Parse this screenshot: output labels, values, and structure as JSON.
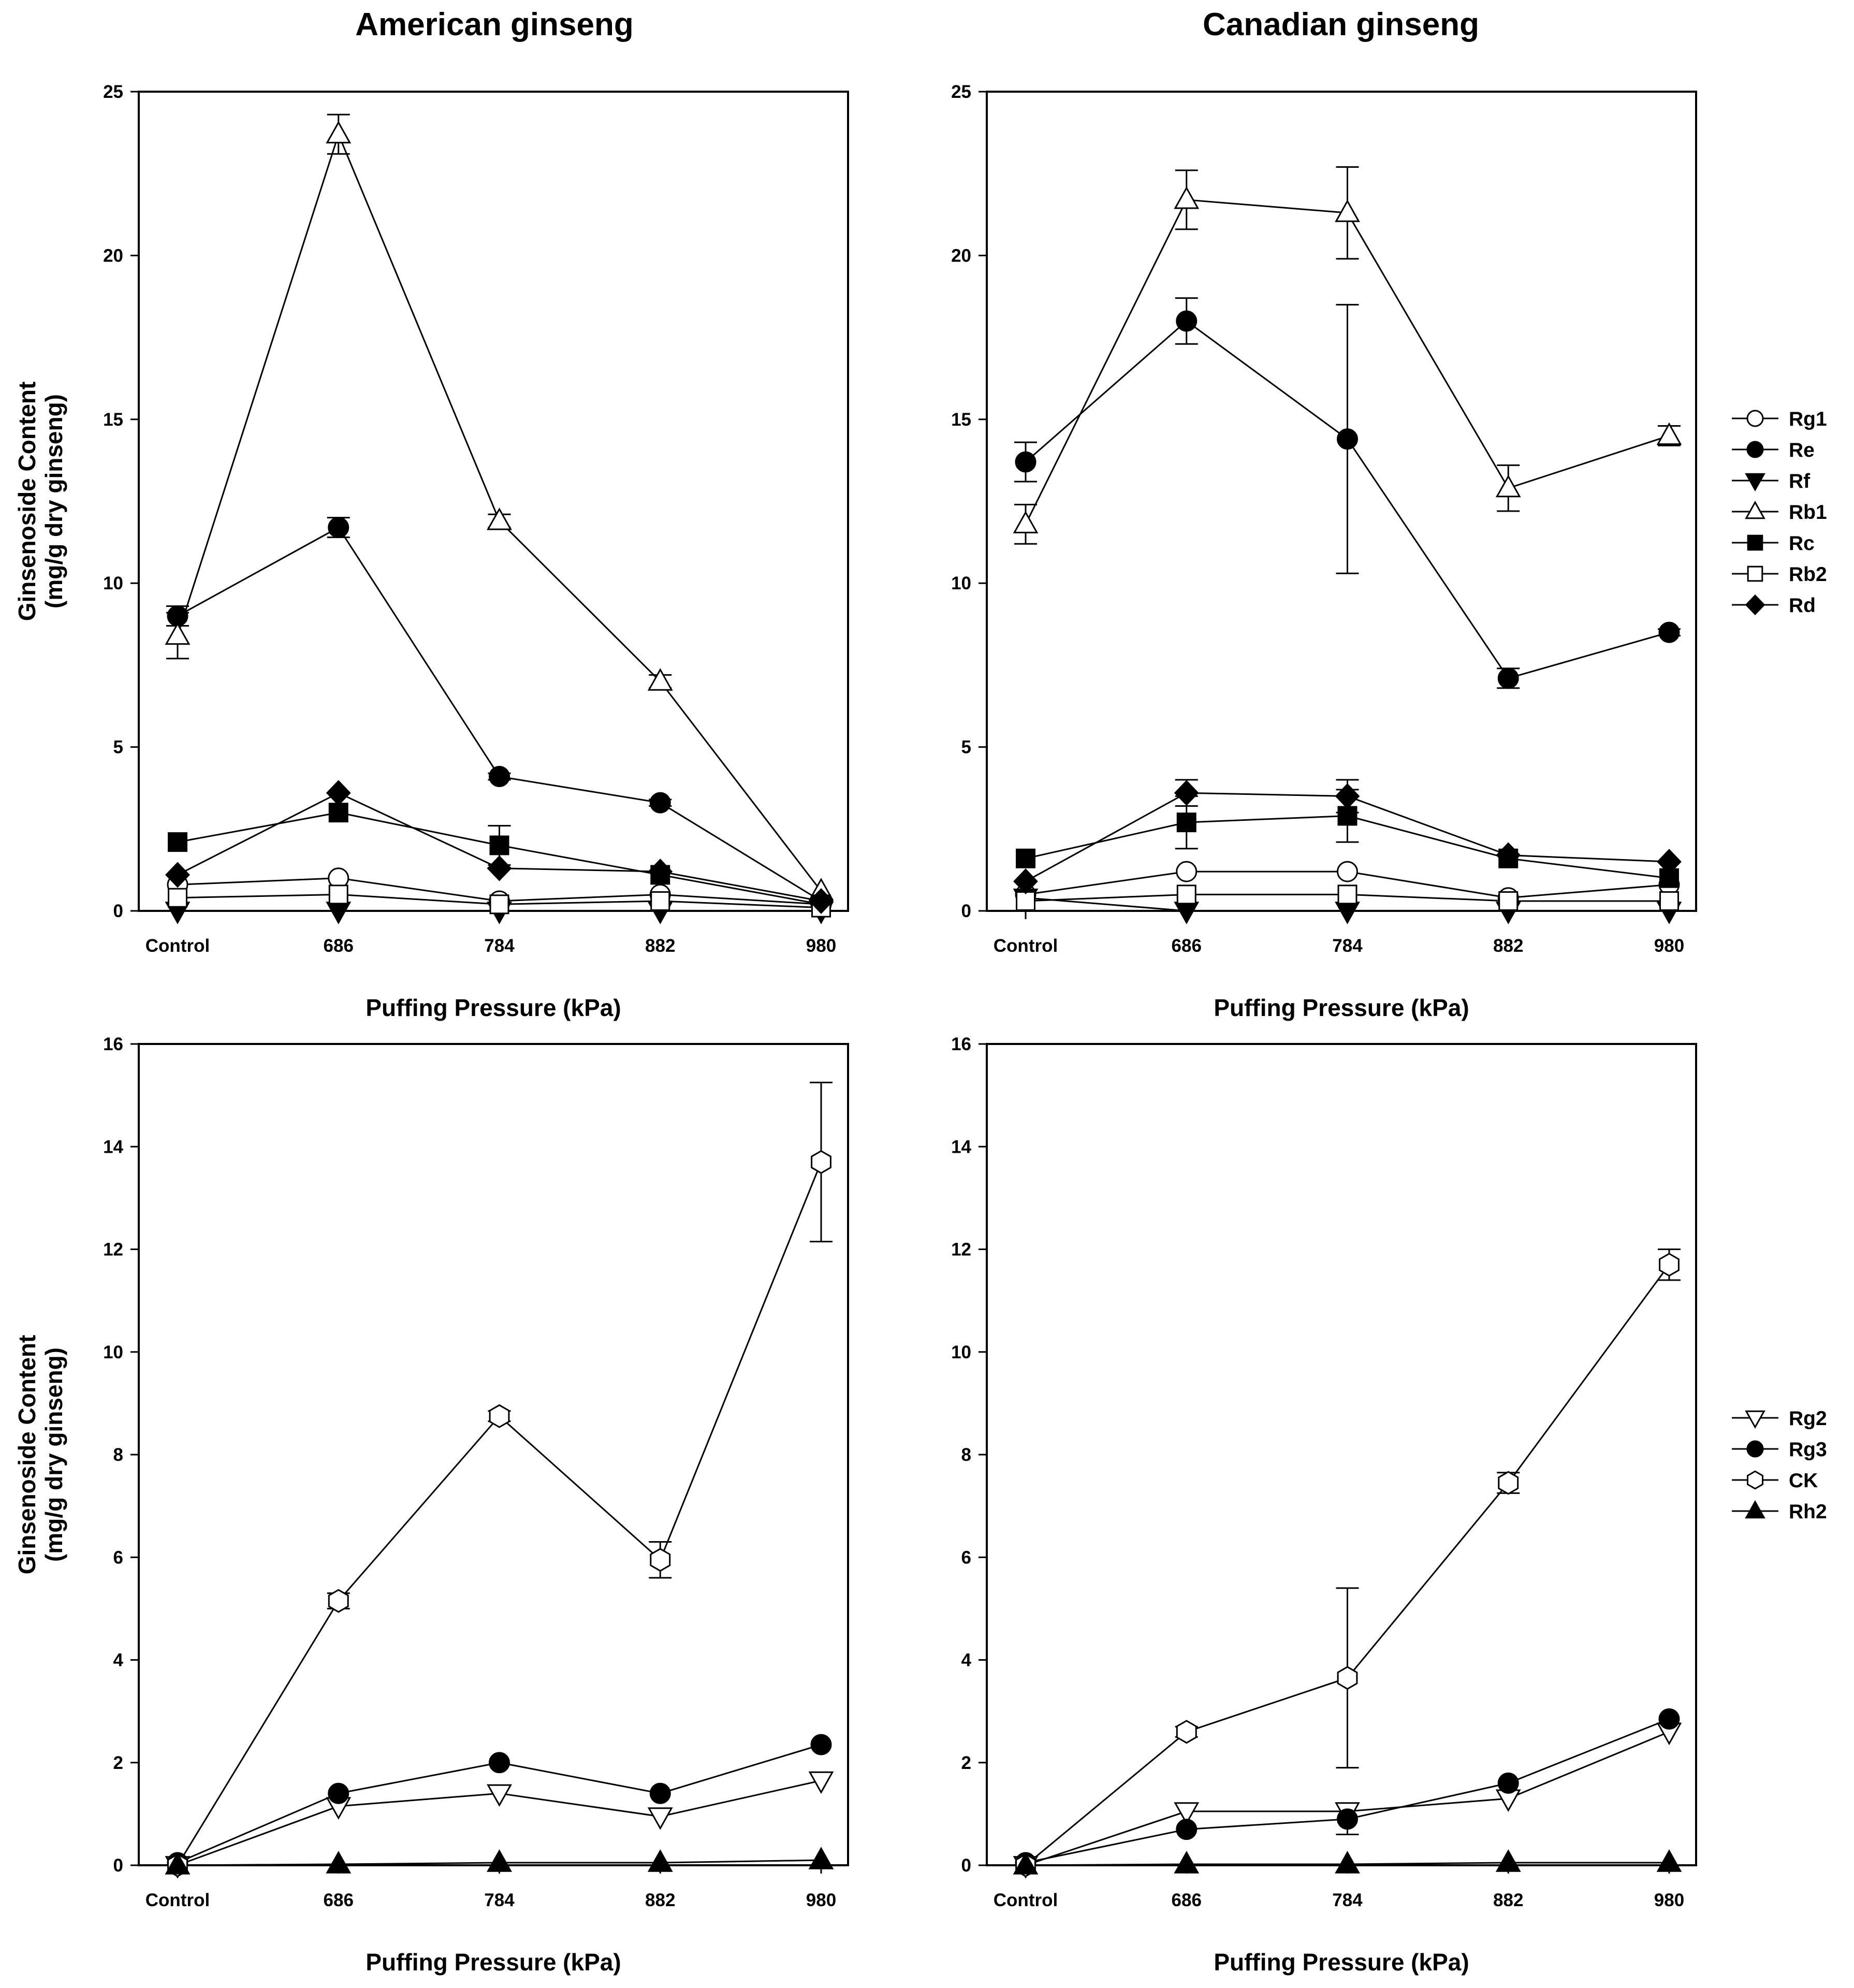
{
  "column_titles": [
    "American ginseng",
    "Canadian ginseng"
  ],
  "colors": {
    "ink": "#000000",
    "background": "#ffffff"
  },
  "legends": {
    "top": [
      {
        "name": "Rg1",
        "marker": "circle",
        "filled": false
      },
      {
        "name": "Re",
        "marker": "circle",
        "filled": true
      },
      {
        "name": "Rf",
        "marker": "triangle-down",
        "filled": true
      },
      {
        "name": "Rb1",
        "marker": "triangle-up",
        "filled": false
      },
      {
        "name": "Rc",
        "marker": "square",
        "filled": true
      },
      {
        "name": "Rb2",
        "marker": "square",
        "filled": false
      },
      {
        "name": "Rd",
        "marker": "diamond",
        "filled": true
      }
    ],
    "bottom": [
      {
        "name": "Rg2",
        "marker": "triangle-down",
        "filled": false
      },
      {
        "name": "Rg3",
        "marker": "circle",
        "filled": true
      },
      {
        "name": "CK",
        "marker": "hexagon",
        "filled": false
      },
      {
        "name": "Rh2",
        "marker": "triangle-up",
        "filled": true
      }
    ]
  },
  "chart_data": [
    {
      "id": "american-top",
      "type": "line",
      "title": "American ginseng",
      "xlabel": "Puffing Pressure (kPa)",
      "ylabel": "Ginsenoside Content\n(mg/g dry ginseng)",
      "categories": [
        "Control",
        "686",
        "784",
        "882",
        "980"
      ],
      "ylim": [
        0,
        25
      ],
      "yticks": [
        0,
        5,
        10,
        15,
        20,
        25
      ],
      "series": [
        {
          "name": "Rg1",
          "values": [
            0.8,
            1.0,
            0.3,
            0.5,
            0.2
          ]
        },
        {
          "name": "Re",
          "values": [
            9.0,
            11.7,
            4.1,
            3.3,
            0.3
          ],
          "errors": [
            0.3,
            0.3,
            0.1,
            0.1,
            0
          ]
        },
        {
          "name": "Rf",
          "values": [
            0,
            0,
            0,
            0,
            0
          ]
        },
        {
          "name": "Rb1",
          "values": [
            8.4,
            23.7,
            11.9,
            7.0,
            0.6
          ],
          "errors": [
            0.7,
            0.6,
            0.2,
            0.2,
            0
          ]
        },
        {
          "name": "Rc",
          "values": [
            2.1,
            3.0,
            2.0,
            1.1,
            0.2
          ],
          "errors": [
            0,
            0,
            0.6,
            0,
            0
          ]
        },
        {
          "name": "Rb2",
          "values": [
            0.4,
            0.5,
            0.2,
            0.3,
            0.1
          ]
        },
        {
          "name": "Rd",
          "values": [
            1.1,
            3.6,
            1.3,
            1.2,
            0.3
          ]
        }
      ]
    },
    {
      "id": "canadian-top",
      "type": "line",
      "title": "Canadian ginseng",
      "xlabel": "Puffing Pressure (kPa)",
      "ylabel": "",
      "categories": [
        "Control",
        "686",
        "784",
        "882",
        "980"
      ],
      "ylim": [
        0,
        25
      ],
      "yticks": [
        0,
        5,
        10,
        15,
        20,
        25
      ],
      "series": [
        {
          "name": "Rg1",
          "values": [
            0.5,
            1.2,
            1.2,
            0.4,
            0.8
          ]
        },
        {
          "name": "Re",
          "values": [
            13.7,
            18.0,
            14.4,
            7.1,
            8.5
          ],
          "errors": [
            0.6,
            0.7,
            4.1,
            0.3,
            0.1
          ]
        },
        {
          "name": "Rf",
          "values": [
            0.4,
            0,
            0,
            0,
            0
          ]
        },
        {
          "name": "Rb1",
          "values": [
            11.8,
            21.7,
            21.3,
            12.9,
            14.5
          ],
          "errors": [
            0.6,
            0.9,
            1.4,
            0.7,
            0.3
          ]
        },
        {
          "name": "Rc",
          "values": [
            1.6,
            2.7,
            2.9,
            1.6,
            1.0
          ],
          "errors": [
            0,
            0.8,
            0.8,
            0,
            0
          ]
        },
        {
          "name": "Rb2",
          "values": [
            0.3,
            0.5,
            0.5,
            0.3,
            0.3
          ]
        },
        {
          "name": "Rd",
          "values": [
            0.9,
            3.6,
            3.5,
            1.7,
            1.5
          ],
          "errors": [
            0,
            0.4,
            0.5,
            0,
            0
          ]
        }
      ]
    },
    {
      "id": "american-bottom",
      "type": "line",
      "title": "",
      "xlabel": "Puffing Pressure (kPa)",
      "ylabel": "Ginsenoside Content\n(mg/g dry ginseng)",
      "categories": [
        "Control",
        "686",
        "784",
        "882",
        "980"
      ],
      "ylim": [
        0,
        16
      ],
      "yticks": [
        0,
        2,
        4,
        6,
        8,
        10,
        12,
        14,
        16
      ],
      "series": [
        {
          "name": "Rg2",
          "values": [
            0,
            1.15,
            1.4,
            0.95,
            1.65
          ]
        },
        {
          "name": "Rg3",
          "values": [
            0.05,
            1.4,
            2.0,
            1.4,
            2.35
          ]
        },
        {
          "name": "CK",
          "values": [
            0,
            5.15,
            8.75,
            5.95,
            13.7
          ],
          "errors": [
            0,
            0.15,
            0.1,
            0.35,
            1.55
          ]
        },
        {
          "name": "Rh2",
          "values": [
            0,
            0.02,
            0.05,
            0.05,
            0.1
          ]
        }
      ]
    },
    {
      "id": "canadian-bottom",
      "type": "line",
      "title": "",
      "xlabel": "Puffing Pressure (kPa)",
      "ylabel": "",
      "categories": [
        "Control",
        "686",
        "784",
        "882",
        "980"
      ],
      "ylim": [
        0,
        16
      ],
      "yticks": [
        0,
        2,
        4,
        6,
        8,
        10,
        12,
        14,
        16
      ],
      "series": [
        {
          "name": "Rg2",
          "values": [
            0,
            1.05,
            1.05,
            1.3,
            2.6
          ]
        },
        {
          "name": "Rg3",
          "values": [
            0.05,
            0.7,
            0.9,
            1.6,
            2.85
          ],
          "errors": [
            0,
            0,
            0.3,
            0,
            0
          ]
        },
        {
          "name": "CK",
          "values": [
            0,
            2.6,
            3.65,
            7.45,
            11.7
          ],
          "errors": [
            0,
            0.1,
            1.75,
            0.2,
            0.3
          ]
        },
        {
          "name": "Rh2",
          "values": [
            0,
            0.02,
            0.02,
            0.05,
            0.05
          ]
        }
      ]
    }
  ]
}
